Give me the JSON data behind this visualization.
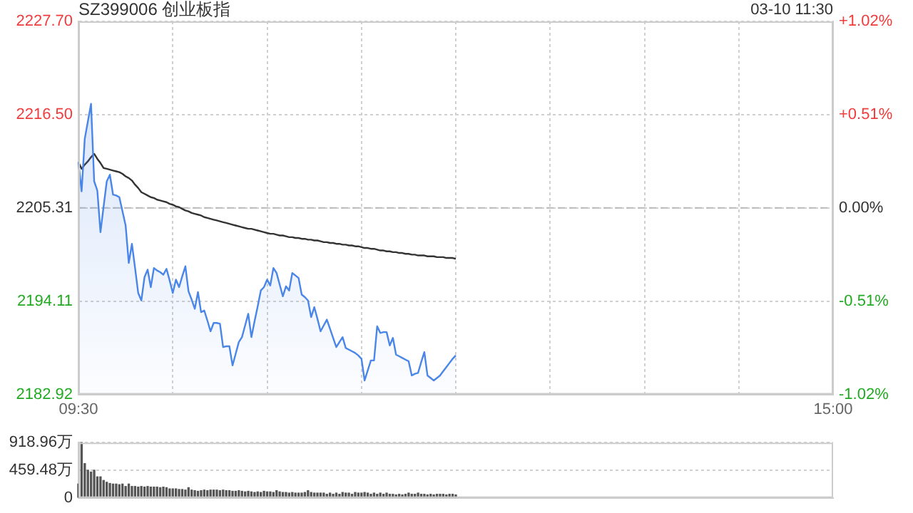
{
  "chart_data": [
    {
      "type": "line",
      "title": "SZ399006 创业板指",
      "annotations": [
        "03-10 11:30"
      ],
      "categories": [
        "09:30",
        null,
        null,
        null,
        null,
        null,
        null,
        null,
        null,
        null,
        null,
        null,
        null,
        null,
        null,
        null,
        null,
        null,
        null,
        null,
        null,
        null,
        null,
        null,
        null,
        null,
        null,
        null,
        null,
        null,
        null,
        null,
        null,
        null,
        null,
        null,
        null,
        null,
        null,
        null,
        null,
        null,
        null,
        null,
        null,
        null,
        null,
        null,
        null,
        null,
        null,
        null,
        null,
        null,
        null,
        null,
        null,
        null,
        null,
        null,
        null,
        null,
        null,
        null,
        null,
        null,
        null,
        null,
        null,
        null,
        null,
        null,
        null,
        null,
        null,
        null,
        null,
        null,
        null,
        null,
        null,
        null,
        null,
        null,
        null,
        null,
        null,
        null,
        null,
        null,
        null,
        null,
        null,
        null,
        null,
        null,
        null,
        null,
        null,
        null,
        null,
        null,
        null,
        null,
        null,
        null,
        null,
        null,
        null,
        null,
        null,
        null,
        null,
        null,
        null,
        null,
        null,
        null,
        null,
        null,
        null,
        null,
        null,
        null,
        null,
        null,
        null,
        null,
        null,
        null,
        null,
        null,
        null,
        null,
        null,
        null,
        null,
        null,
        null,
        null,
        null,
        null,
        null,
        null,
        null,
        null,
        null,
        null,
        null,
        null,
        null,
        null,
        null,
        null,
        null,
        null,
        null,
        null,
        null,
        null,
        null,
        null,
        null,
        null,
        null,
        null,
        null,
        null,
        null,
        null,
        null,
        null,
        null,
        null,
        null,
        null,
        null,
        null,
        null,
        null,
        null,
        null,
        null,
        null,
        null,
        null,
        null,
        null,
        null,
        null,
        null,
        null,
        null,
        null,
        null,
        null,
        null,
        null,
        null,
        null,
        null,
        null,
        null,
        null,
        null,
        null,
        null,
        null,
        null,
        null,
        null,
        null,
        null,
        null,
        null,
        null,
        null,
        null,
        null,
        null,
        null,
        null,
        null,
        null,
        null,
        null,
        null,
        null,
        null,
        null,
        null,
        null,
        null,
        null,
        null,
        null,
        null,
        null,
        null,
        null,
        "15:00"
      ],
      "ylim": [
        2182.92,
        2227.7
      ],
      "yticks": [
        {
          "value": 2182.92,
          "label": "2182.92"
        },
        {
          "value": 2194.11,
          "label": "2194.11"
        },
        {
          "value": 2205.31,
          "label": "2205.31"
        },
        {
          "value": 2216.5,
          "label": "2216.50"
        },
        {
          "value": 2227.7,
          "label": "2227.70"
        }
      ],
      "y2lim": [
        -1.02,
        1.02
      ],
      "y2ticks": [
        {
          "value": -1.02,
          "label": "-1.02%"
        },
        {
          "value": -0.51,
          "label": "-0.51%"
        },
        {
          "value": 0,
          "label": "0.00%"
        },
        {
          "value": 0.51,
          "label": "+0.51%"
        },
        {
          "value": 1.02,
          "label": "+1.02%"
        }
      ],
      "grid": true,
      "line_style": "solid",
      "ref_lines": [
        {
          "axis": "y",
          "value": 2205.31,
          "color": "#bbbbbb",
          "line_style": "dashed"
        }
      ],
      "series": [
        {
          "type": "area",
          "color": "#4a86e8",
          "values": [
            2210.8,
            2207.3,
            2213.6,
            2215.7,
            2217.8,
            2208.5,
            2207.4,
            2202.4,
            2205.5,
            2208.5,
            2209.3,
            2206.9,
            2206.8,
            2206.6,
            2204.9,
            2203.2,
            2198.7,
            2201.0,
            2198.1,
            2195.1,
            2194.2,
            2197.0,
            2197.9,
            2195.8,
            2198.1,
            2197.8,
            2197.6,
            2197.3,
            2198.0,
            2196.6,
            2195.1,
            2196.7,
            2195.8,
            2197.1,
            2198.3,
            2195.3,
            2194.3,
            2193.2,
            2195.2,
            2192.8,
            2193.0,
            2191.8,
            2190.5,
            2191.5,
            2191.5,
            2191.4,
            2188.6,
            2188.7,
            2188.7,
            2186.4,
            2187.8,
            2189.2,
            2189.8,
            2191.2,
            2192.6,
            2189.8,
            2191.7,
            2193.5,
            2195.4,
            2195.8,
            2196.7,
            2196.0,
            2198.1,
            2197.5,
            2196.1,
            2194.7,
            2195.9,
            2195.4,
            2197.5,
            2197.2,
            2196.9,
            2194.9,
            2194.6,
            2194.2,
            2192.2,
            2193.4,
            2192.0,
            2190.5,
            2191.2,
            2191.9,
            2190.8,
            2189.7,
            2188.6,
            2189.2,
            2189.8,
            2188.5,
            2188.3,
            2188.1,
            2187.9,
            2187.6,
            2187.2,
            2184.6,
            2185.8,
            2187.0,
            2187.0,
            2191.1,
            2190.3,
            2190.4,
            2190.4,
            2188.8,
            2189.7,
            2187.7,
            2187.5,
            2187.3,
            2187.1,
            2186.9,
            2185.2,
            2185.4,
            2185.5,
            2186.8,
            2188.0,
            2185.2,
            2184.9,
            2184.6,
            2184.9,
            2185.2,
            2185.7,
            2186.2,
            2186.7,
            2187.2,
            2187.6,
            null,
            null,
            null,
            null,
            null,
            null,
            null,
            null,
            null,
            null,
            null,
            null,
            null,
            null,
            null,
            null,
            null,
            null,
            null,
            null,
            null,
            null,
            null,
            null,
            null,
            null,
            null,
            null,
            null,
            null,
            null,
            null,
            null,
            null,
            null,
            null,
            null,
            null,
            null,
            null,
            null,
            null,
            null,
            null,
            null,
            null,
            null,
            null,
            null,
            null,
            null,
            null,
            null,
            null,
            null,
            null,
            null,
            null,
            null,
            null,
            null,
            null,
            null,
            null,
            null,
            null,
            null,
            null,
            null,
            null,
            null,
            null,
            null,
            null,
            null,
            null,
            null,
            null,
            null,
            null,
            null,
            null,
            null,
            null,
            null,
            null,
            null,
            null,
            null,
            null,
            null,
            null,
            null,
            null,
            null,
            null,
            null,
            null,
            null,
            null,
            null,
            null,
            null,
            null,
            null,
            null,
            null,
            null,
            null,
            null,
            null,
            null,
            null,
            null,
            null,
            null,
            null,
            null,
            null,
            null
          ]
        },
        {
          "color": "#333333",
          "values": [
            2210.8,
            2210.0,
            2210.5,
            2210.9,
            2211.4,
            2211.8,
            2211.2,
            2210.7,
            2210.1,
            2210.0,
            2209.9,
            2209.8,
            2209.7,
            2209.6,
            2209.4,
            2209.1,
            2208.9,
            2208.6,
            2208.1,
            2207.7,
            2207.2,
            2207.0,
            2206.8,
            2206.6,
            2206.5,
            2206.3,
            2206.2,
            2206.1,
            2206.0,
            2205.8,
            2205.7,
            2205.5,
            2205.4,
            2205.2,
            2205.0,
            2204.9,
            2204.7,
            2204.6,
            2204.5,
            2204.4,
            2204.2,
            2204.1,
            2204.0,
            2203.9,
            2203.8,
            2203.7,
            2203.6,
            2203.5,
            2203.4,
            2203.3,
            2203.2,
            2203.1,
            2203.0,
            2202.9,
            2202.8,
            2202.8,
            2202.7,
            2202.6,
            2202.5,
            2202.4,
            2202.3,
            2202.2,
            2202.2,
            2202.1,
            2202.0,
            2202.0,
            2201.9,
            2201.8,
            2201.8,
            2201.7,
            2201.7,
            2201.6,
            2201.6,
            2201.5,
            2201.5,
            2201.4,
            2201.4,
            2201.3,
            2201.2,
            2201.2,
            2201.1,
            2201.1,
            2201.0,
            2201.0,
            2200.9,
            2200.9,
            2200.8,
            2200.8,
            2200.7,
            2200.7,
            2200.6,
            2200.5,
            2200.5,
            2200.4,
            2200.4,
            2200.3,
            2200.2,
            2200.2,
            2200.1,
            2200.1,
            2200.0,
            2200.0,
            2199.9,
            2199.9,
            2199.8,
            2199.8,
            2199.7,
            2199.7,
            2199.6,
            2199.6,
            2199.6,
            2199.5,
            2199.5,
            2199.5,
            2199.4,
            2199.4,
            2199.4,
            2199.3,
            2199.3,
            2199.3,
            2199.2,
            null,
            null,
            null,
            null,
            null,
            null,
            null,
            null,
            null,
            null,
            null,
            null,
            null,
            null,
            null,
            null,
            null,
            null,
            null,
            null,
            null,
            null,
            null,
            null,
            null,
            null,
            null,
            null,
            null,
            null,
            null,
            null,
            null,
            null,
            null,
            null,
            null,
            null,
            null,
            null,
            null,
            null,
            null,
            null,
            null,
            null,
            null,
            null,
            null,
            null,
            null,
            null,
            null,
            null,
            null,
            null,
            null,
            null,
            null,
            null,
            null,
            null,
            null,
            null,
            null,
            null,
            null,
            null,
            null,
            null,
            null,
            null,
            null,
            null,
            null,
            null,
            null,
            null,
            null,
            null,
            null,
            null,
            null,
            null,
            null,
            null,
            null,
            null,
            null,
            null,
            null,
            null,
            null,
            null,
            null,
            null,
            null,
            null,
            null,
            null,
            null,
            null,
            null,
            null,
            null,
            null,
            null,
            null,
            null,
            null,
            null,
            null,
            null,
            null,
            null,
            null,
            null,
            null,
            null,
            null
          ]
        }
      ]
    },
    {
      "type": "bar",
      "tick_labels": "y",
      "grid": "y",
      "color": "#555555",
      "categories": [
        null,
        null,
        null,
        null,
        null,
        null,
        null,
        null,
        null,
        null,
        null,
        null,
        null,
        null,
        null,
        null,
        null,
        null,
        null,
        null,
        null,
        null,
        null,
        null,
        null,
        null,
        null,
        null,
        null,
        null,
        null,
        null,
        null,
        null,
        null,
        null,
        null,
        null,
        null,
        null,
        null,
        null,
        null,
        null,
        null,
        null,
        null,
        null,
        null,
        null,
        null,
        null,
        null,
        null,
        null,
        null,
        null,
        null,
        null,
        null,
        null,
        null,
        null,
        null,
        null,
        null,
        null,
        null,
        null,
        null,
        null,
        null,
        null,
        null,
        null,
        null,
        null,
        null,
        null,
        null,
        null,
        null,
        null,
        null,
        null,
        null,
        null,
        null,
        null,
        null,
        null,
        null,
        null,
        null,
        null,
        null,
        null,
        null,
        null,
        null,
        null,
        null,
        null,
        null,
        null,
        null,
        null,
        null,
        null,
        null,
        null,
        null,
        null,
        null,
        null,
        null,
        null,
        null,
        null,
        null,
        null,
        null,
        null,
        null,
        null,
        null,
        null,
        null,
        null,
        null,
        null,
        null,
        null,
        null,
        null,
        null,
        null,
        null,
        null,
        null,
        null,
        null,
        null,
        null,
        null,
        null,
        null,
        null,
        null,
        null,
        null,
        null,
        null,
        null,
        null,
        null,
        null,
        null,
        null,
        null,
        null,
        null,
        null,
        null,
        null,
        null,
        null,
        null,
        null,
        null,
        null,
        null,
        null,
        null,
        null,
        null,
        null,
        null,
        null,
        null,
        null,
        null,
        null,
        null,
        null,
        null,
        null,
        null,
        null,
        null,
        null,
        null,
        null,
        null,
        null,
        null,
        null,
        null,
        null,
        null,
        null,
        null,
        null,
        null,
        null,
        null,
        null,
        null,
        null,
        null,
        null,
        null,
        null,
        null,
        null,
        null,
        null,
        null,
        null,
        null,
        null,
        null,
        null,
        null,
        null,
        null,
        null,
        null,
        null,
        null,
        null,
        null,
        null,
        null,
        null,
        null,
        null,
        null,
        null,
        null,
        null
      ],
      "ylim": [
        0,
        918.96
      ],
      "yticks": [
        0,
        {
          "value": 459.48,
          "label": "459.48万"
        },
        {
          "value": 918.96,
          "label": "918.96万"
        }
      ],
      "values": [
        230,
        918.96,
        570,
        460,
        430,
        460,
        350,
        350,
        290,
        260,
        240,
        230,
        230,
        220,
        230,
        190,
        230,
        190,
        190,
        180,
        190,
        180,
        190,
        180,
        180,
        180,
        170,
        180,
        170,
        150,
        150,
        150,
        140,
        140,
        130,
        170,
        130,
        120,
        110,
        120,
        130,
        120,
        130,
        130,
        130,
        120,
        130,
        120,
        120,
        110,
        110,
        120,
        110,
        100,
        110,
        100,
        90,
        100,
        90,
        110,
        100,
        100,
        90,
        120,
        100,
        90,
        90,
        80,
        90,
        80,
        80,
        80,
        90,
        120,
        90,
        80,
        80,
        80,
        80,
        60,
        80,
        60,
        80,
        60,
        90,
        80,
        80,
        60,
        90,
        80,
        80,
        90,
        80,
        60,
        80,
        60,
        80,
        60,
        80,
        60,
        60,
        50,
        60,
        50,
        60,
        80,
        60,
        60,
        80,
        60,
        60,
        50,
        60,
        50,
        60,
        60,
        60,
        50,
        60,
        60,
        50,
        null,
        null,
        null,
        null,
        null,
        null,
        null,
        null,
        null,
        null,
        null,
        null,
        null,
        null,
        null,
        null,
        null,
        null,
        null,
        null,
        null,
        null,
        null,
        null,
        null,
        null,
        null,
        null,
        null,
        null,
        null,
        null,
        null,
        null,
        null,
        null,
        null,
        null,
        null,
        null,
        null,
        null,
        null,
        null,
        null,
        null,
        null,
        null,
        null,
        null,
        null,
        null,
        null,
        null,
        null,
        null,
        null,
        null,
        null,
        null,
        null,
        null,
        null,
        null,
        null,
        null,
        null,
        null,
        null,
        null,
        null,
        null,
        null,
        null,
        null,
        null,
        null,
        null,
        null,
        null,
        null,
        null,
        null,
        null,
        null,
        null,
        null,
        null,
        null,
        null,
        null,
        null,
        null,
        null,
        null,
        null,
        null,
        null,
        null,
        null,
        null,
        null,
        null,
        null,
        null,
        null,
        null,
        null,
        null,
        null,
        null,
        null,
        null,
        null,
        null,
        null,
        null,
        null,
        null,
        null
      ]
    }
  ]
}
